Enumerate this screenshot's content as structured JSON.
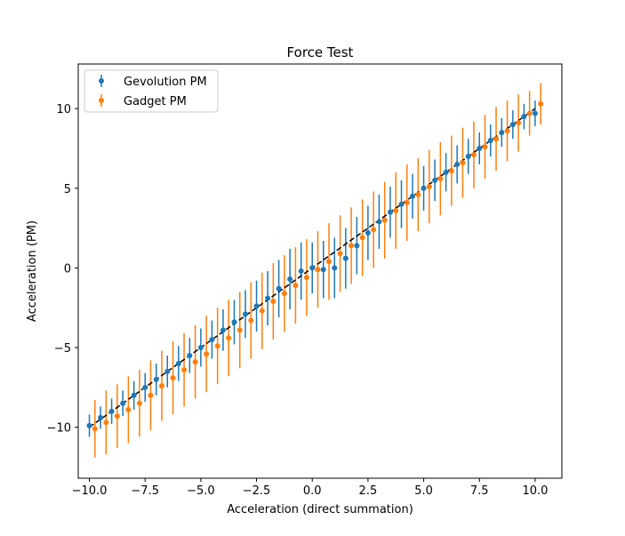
{
  "chart_data": {
    "type": "scatter",
    "title": "Force Test",
    "xlabel": "Acceleration (direct summation)",
    "ylabel": "Acceleration (PM)",
    "xlim": [
      -10.5,
      11.2
    ],
    "ylim": [
      -13.2,
      12.8
    ],
    "xticks": [
      -10.0,
      -7.5,
      -5.0,
      -2.5,
      0.0,
      2.5,
      5.0,
      7.5,
      10.0
    ],
    "xtick_labels": [
      "−10.0",
      "−7.5",
      "−5.0",
      "−2.5",
      "0.0",
      "2.5",
      "5.0",
      "7.5",
      "10.0"
    ],
    "yticks": [
      -10,
      -5,
      0,
      5,
      10
    ],
    "ytick_labels": [
      "−10",
      "−5",
      "0",
      "5",
      "10"
    ],
    "grid": false,
    "legend": {
      "placement": "upper-left"
    },
    "reference_line": {
      "x": [
        -10,
        10
      ],
      "y": [
        -10,
        10
      ],
      "style": "dashed",
      "color": "#000000"
    },
    "series": [
      {
        "name": "Gevolution PM",
        "color": "#1f77b4",
        "x": [
          -10.0,
          -9.5,
          -9.0,
          -8.5,
          -8.0,
          -7.5,
          -7.0,
          -6.5,
          -6.0,
          -5.5,
          -5.0,
          -4.5,
          -4.0,
          -3.5,
          -3.0,
          -2.5,
          -2.0,
          -1.5,
          -1.0,
          -0.5,
          0.0,
          0.5,
          1.0,
          1.5,
          2.0,
          2.5,
          3.0,
          3.5,
          4.0,
          4.5,
          5.0,
          5.5,
          6.0,
          6.5,
          7.0,
          7.5,
          8.0,
          8.5,
          9.0,
          9.5,
          10.0
        ],
        "y": [
          -9.9,
          -9.4,
          -9.0,
          -8.5,
          -8.0,
          -7.5,
          -7.0,
          -6.5,
          -6.0,
          -5.5,
          -5.0,
          -4.5,
          -3.9,
          -3.4,
          -2.9,
          -2.4,
          -1.9,
          -1.3,
          -0.7,
          -0.2,
          0.0,
          -0.1,
          0.0,
          0.6,
          1.4,
          2.2,
          2.9,
          3.5,
          4.0,
          4.5,
          5.0,
          5.5,
          6.0,
          6.5,
          7.0,
          7.5,
          8.0,
          8.5,
          9.0,
          9.5,
          9.7
        ],
        "err": [
          0.7,
          0.7,
          0.8,
          0.8,
          0.9,
          0.9,
          1.0,
          1.0,
          1.1,
          1.1,
          1.2,
          1.2,
          1.3,
          1.4,
          1.5,
          1.6,
          1.7,
          1.8,
          1.9,
          1.8,
          1.6,
          1.8,
          1.9,
          1.9,
          1.8,
          1.7,
          1.7,
          1.6,
          1.5,
          1.4,
          1.4,
          1.3,
          1.2,
          1.2,
          1.1,
          1.0,
          1.0,
          0.9,
          0.9,
          0.8,
          0.8
        ]
      },
      {
        "name": "Gadget PM",
        "color": "#ff7f0e",
        "x": [
          -9.75,
          -9.25,
          -8.75,
          -8.25,
          -7.75,
          -7.25,
          -6.75,
          -6.25,
          -5.75,
          -5.25,
          -4.75,
          -4.25,
          -3.75,
          -3.25,
          -2.75,
          -2.25,
          -1.75,
          -1.25,
          -0.75,
          -0.25,
          0.25,
          0.75,
          1.25,
          1.75,
          2.25,
          2.75,
          3.25,
          3.75,
          4.25,
          4.75,
          5.25,
          5.75,
          6.25,
          6.75,
          7.25,
          7.75,
          8.25,
          8.75,
          9.25,
          9.75,
          10.25
        ],
        "y": [
          -10.1,
          -9.7,
          -9.3,
          -8.9,
          -8.5,
          -8.0,
          -7.4,
          -6.9,
          -6.4,
          -5.9,
          -5.4,
          -4.9,
          -4.4,
          -3.9,
          -3.3,
          -2.7,
          -2.1,
          -1.6,
          -1.1,
          -0.6,
          -0.1,
          0.4,
          0.9,
          1.4,
          1.9,
          2.4,
          3.0,
          3.6,
          4.1,
          4.6,
          5.1,
          5.6,
          6.1,
          6.6,
          7.1,
          7.6,
          8.1,
          8.6,
          9.1,
          9.7,
          10.3
        ],
        "err": [
          1.8,
          2.0,
          2.0,
          2.1,
          2.1,
          2.2,
          2.2,
          2.3,
          2.3,
          2.3,
          2.4,
          2.4,
          2.4,
          2.4,
          2.4,
          2.4,
          2.4,
          2.4,
          2.4,
          2.4,
          2.4,
          2.4,
          2.4,
          2.4,
          2.4,
          2.4,
          2.4,
          2.4,
          2.4,
          2.3,
          2.3,
          2.3,
          2.2,
          2.2,
          2.1,
          2.0,
          2.0,
          1.9,
          1.8,
          1.4,
          1.3
        ]
      }
    ]
  }
}
